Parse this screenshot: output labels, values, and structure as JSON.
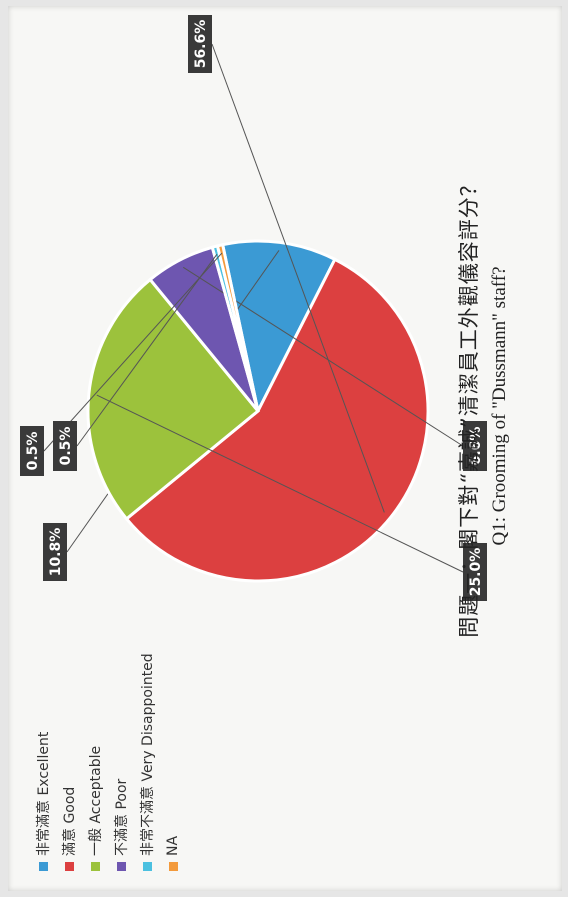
{
  "chart_data": {
    "type": "pie",
    "title": "問題一：閣下對“嘉誠”清潔員工外觀儀容評分？",
    "subtitle": "Q1: Grooming of \"Dussmann\" staff?",
    "legend_position": "left",
    "slices": [
      {
        "label": "非常滿意 Excellent",
        "value": 10.8,
        "display": "10.8%",
        "color": "#3b9ad4"
      },
      {
        "label": "滿意 Good",
        "value": 56.6,
        "display": "56.6%",
        "color": "#dc4040"
      },
      {
        "label": "一般 Acceptable",
        "value": 25.0,
        "display": "25.0%",
        "color": "#9cc23c"
      },
      {
        "label": "不滿意 Poor",
        "value": 6.6,
        "display": "6.6%",
        "color": "#6e56b0"
      },
      {
        "label": "非常不滿意 Very Disappointed",
        "value": 0.5,
        "display": "0.5%",
        "color": "#4bc0e0"
      },
      {
        "label": "NA",
        "value": 0.5,
        "display": "0.5%",
        "color": "#f39a3c"
      }
    ]
  }
}
